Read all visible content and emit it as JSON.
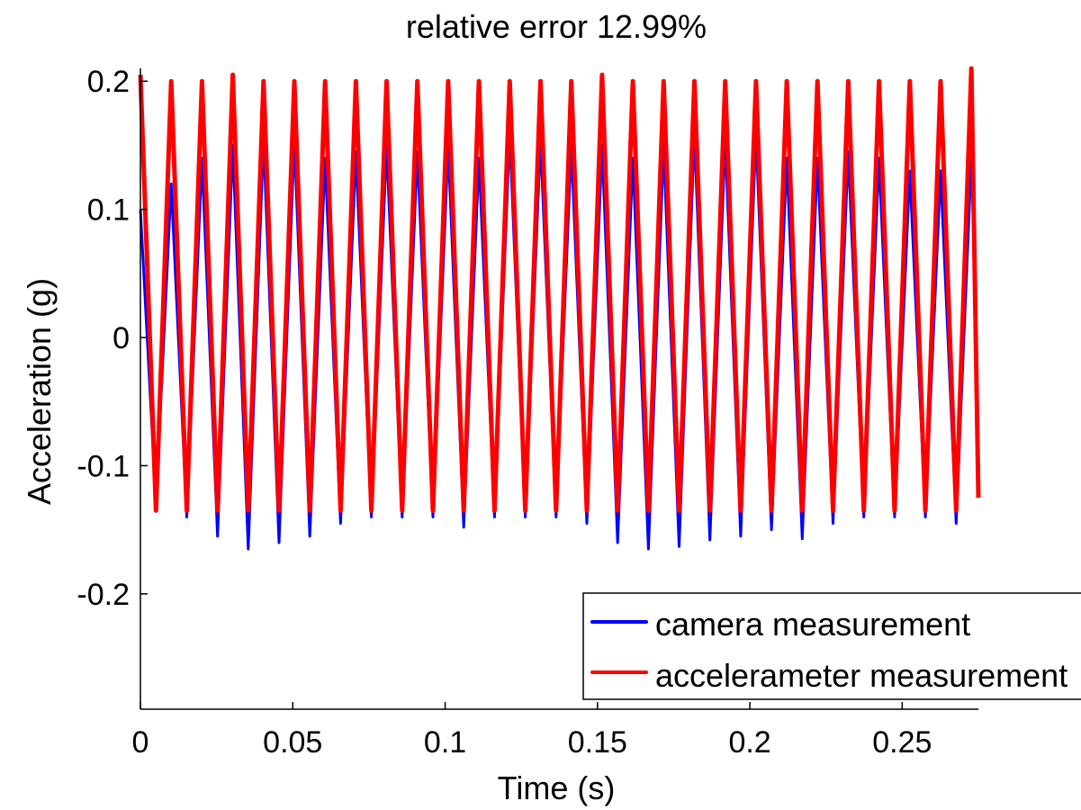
{
  "chart_data": {
    "type": "line",
    "title": "relative error 12.99%",
    "xlabel": "Time (s)",
    "ylabel": "Acceleration (g)",
    "xlim": [
      0,
      0.275
    ],
    "ylim": [
      -0.29,
      0.21
    ],
    "x_ticks": [
      0,
      0.05,
      0.1,
      0.15,
      0.2,
      0.25
    ],
    "x_tick_labels": [
      "0",
      "0.05",
      "0.1",
      "0.15",
      "0.2",
      "0.25"
    ],
    "y_ticks": [
      -0.2,
      -0.1,
      0,
      0.1,
      0.2
    ],
    "y_tick_labels": [
      "-0.2",
      "-0.1",
      "0",
      "0.1",
      "0.2"
    ],
    "grid": false,
    "legend_position": "bottom-right",
    "series": [
      {
        "name": "camera measurement",
        "color": "#0000ff",
        "peak_times": [
          0.0,
          0.0101,
          0.0202,
          0.0303,
          0.0404,
          0.0505,
          0.0606,
          0.0707,
          0.0808,
          0.0909,
          0.101,
          0.1111,
          0.1212,
          0.1313,
          0.1414,
          0.1515,
          0.1616,
          0.1717,
          0.1818,
          0.1919,
          0.202,
          0.2121,
          0.2222,
          0.2323,
          0.2424,
          0.2525,
          0.2626,
          0.2727
        ],
        "peak_values": [
          0.1,
          0.12,
          0.14,
          0.15,
          0.155,
          0.155,
          0.14,
          0.145,
          0.15,
          0.145,
          0.15,
          0.14,
          0.16,
          0.155,
          0.15,
          0.15,
          0.14,
          0.15,
          0.16,
          0.155,
          0.16,
          0.14,
          0.14,
          0.145,
          0.14,
          0.13,
          0.13,
          0.14
        ],
        "trough_times": [
          0.0051,
          0.0152,
          0.0253,
          0.0354,
          0.0455,
          0.0556,
          0.0657,
          0.0758,
          0.0859,
          0.096,
          0.1061,
          0.1162,
          0.1263,
          0.1364,
          0.1465,
          0.1566,
          0.1667,
          0.1768,
          0.1869,
          0.197,
          0.2071,
          0.2172,
          0.2273,
          0.2374,
          0.2475,
          0.2576,
          0.2677
        ],
        "trough_values": [
          -0.13,
          -0.14,
          -0.155,
          -0.165,
          -0.16,
          -0.155,
          -0.145,
          -0.14,
          -0.14,
          -0.14,
          -0.148,
          -0.14,
          -0.14,
          -0.14,
          -0.145,
          -0.16,
          -0.165,
          -0.163,
          -0.158,
          -0.155,
          -0.15,
          -0.157,
          -0.145,
          -0.14,
          -0.14,
          -0.14,
          -0.145
        ]
      },
      {
        "name": "accelerameter measurement",
        "color": "#ff0000",
        "peak_times": [
          0.0,
          0.0101,
          0.0202,
          0.0303,
          0.0404,
          0.0505,
          0.0606,
          0.0707,
          0.0808,
          0.0909,
          0.101,
          0.1111,
          0.1212,
          0.1313,
          0.1414,
          0.1515,
          0.1616,
          0.1717,
          0.1818,
          0.1919,
          0.202,
          0.2121,
          0.2222,
          0.2323,
          0.2424,
          0.2525,
          0.2626,
          0.2727
        ],
        "peak_values": [
          0.205,
          0.2,
          0.2,
          0.205,
          0.2,
          0.2,
          0.2,
          0.2,
          0.2,
          0.2,
          0.2,
          0.2,
          0.2,
          0.2,
          0.2,
          0.205,
          0.2,
          0.2,
          0.2,
          0.2,
          0.2,
          0.2,
          0.2,
          0.2,
          0.2,
          0.2,
          0.2,
          0.21
        ],
        "trough_times": [
          0.0051,
          0.0152,
          0.0253,
          0.0354,
          0.0455,
          0.0556,
          0.0657,
          0.0758,
          0.0859,
          0.096,
          0.1061,
          0.1162,
          0.1263,
          0.1364,
          0.1465,
          0.1566,
          0.1667,
          0.1768,
          0.1869,
          0.197,
          0.2071,
          0.2172,
          0.2273,
          0.2374,
          0.2475,
          0.2576,
          0.2677
        ],
        "trough_values": [
          -0.135,
          -0.135,
          -0.135,
          -0.135,
          -0.135,
          -0.135,
          -0.135,
          -0.135,
          -0.135,
          -0.135,
          -0.135,
          -0.135,
          -0.135,
          -0.135,
          -0.135,
          -0.135,
          -0.135,
          -0.135,
          -0.135,
          -0.135,
          -0.135,
          -0.135,
          -0.135,
          -0.135,
          -0.135,
          -0.135,
          -0.135
        ],
        "end": [
          0.275,
          -0.125
        ]
      }
    ]
  }
}
